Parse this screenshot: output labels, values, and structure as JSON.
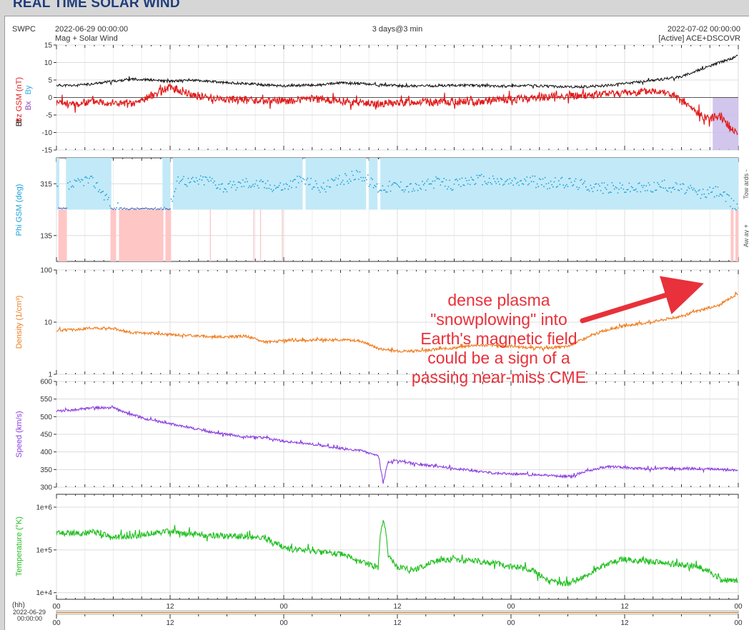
{
  "page": {
    "title": "REAL TIME SOLAR WIND"
  },
  "header": {
    "source": "SWPC",
    "start_time": "2022-06-29 00:00:00",
    "subtitle": "Mag + Solar Wind",
    "span": "3 days@3 min",
    "end_time": "2022-07-02 00:00:00",
    "spacecraft": "[Active] ACE+DSCOVR"
  },
  "annotation": {
    "lines": [
      "dense plasma",
      "\"snowplowing\" into",
      "Earth's magnetic field",
      "could be a sign of a",
      "passing near-miss CME"
    ],
    "color": "#e8313a"
  },
  "x_axis": {
    "tick_labels": [
      "00",
      "12",
      "00",
      "12",
      "00",
      "12",
      "00"
    ],
    "hours": [
      0,
      12,
      24,
      36,
      48,
      60,
      72
    ],
    "unit_label": "(hh)",
    "date_label": "2022-06-29",
    "time_label": "00:00:00"
  },
  "chart_data": [
    {
      "type": "line",
      "name": "mag",
      "ylabel_parts": {
        "bz": "Bz GSM (nT)",
        "bx": "Bx",
        "by": "By",
        "bt": "Bt"
      },
      "ylim": [
        -15,
        15
      ],
      "yticks": [
        15,
        10,
        5,
        0,
        -5,
        -10,
        -15
      ],
      "grid": true,
      "colors": {
        "bt": "#111111",
        "bz": "#e11b1b",
        "by": "#2aa8e0",
        "bx": "#8a3fc0",
        "shade": "#c8b8e8"
      },
      "series": [
        {
          "name": "Bt",
          "x": [
            0,
            2,
            4,
            6,
            8,
            10,
            12,
            14,
            16,
            18,
            20,
            22,
            24,
            26,
            28,
            30,
            32,
            34,
            36,
            38,
            40,
            42,
            44,
            46,
            48,
            50,
            52,
            54,
            56,
            58,
            60,
            62,
            64,
            66,
            67,
            68,
            69,
            70,
            71,
            72
          ],
          "y": [
            3.5,
            3.4,
            4.0,
            4.6,
            5.3,
            5.0,
            4.6,
            5.0,
            4.6,
            4.2,
            4.0,
            3.6,
            3.3,
            3.5,
            3.6,
            4.2,
            4.0,
            3.6,
            3.4,
            3.3,
            3.3,
            3.5,
            3.5,
            3.3,
            3.2,
            3.4,
            3.2,
            3.0,
            3.1,
            3.4,
            4.0,
            4.6,
            5.2,
            6.0,
            7.0,
            8.0,
            9.0,
            10.0,
            10.8,
            12.0
          ]
        },
        {
          "name": "Bz GSM",
          "x": [
            0,
            2,
            4,
            6,
            8,
            10,
            12,
            14,
            16,
            18,
            20,
            22,
            24,
            26,
            28,
            30,
            32,
            34,
            36,
            38,
            40,
            42,
            44,
            46,
            48,
            50,
            52,
            54,
            56,
            58,
            60,
            62,
            64,
            65,
            66,
            67,
            68,
            69,
            70,
            71,
            72
          ],
          "y": [
            -1.5,
            -2.0,
            -1.0,
            -1.5,
            -2.0,
            0.5,
            3.0,
            1.0,
            0.0,
            -0.5,
            -0.8,
            -1.0,
            -1.0,
            -0.6,
            -0.4,
            -1.0,
            -1.4,
            -1.8,
            -1.6,
            -1.2,
            -1.4,
            -1.2,
            -1.3,
            -0.8,
            -0.6,
            -0.2,
            0.3,
            0.4,
            0.6,
            1.0,
            1.3,
            1.6,
            2.0,
            0.5,
            -1.0,
            -3.0,
            -5.0,
            -6.0,
            -5.0,
            -8.0,
            -10.5
          ]
        }
      ],
      "shaded_interval_hours": [
        69.3,
        72
      ]
    },
    {
      "type": "scatter",
      "name": "phi",
      "ylabel": "Phi GSM (deg)",
      "ylim": [
        45,
        405
      ],
      "yticks": [
        315,
        135
      ],
      "grid": true,
      "side_labels": [
        "Tow ards -",
        "Aw ay +"
      ],
      "colors": {
        "points": "#1a9fd8",
        "toward_band": "#c2e9f8",
        "away_band": "#ffc6c6",
        "away_points": "#4a6fb8"
      },
      "toward_band_hours": [
        [
          0,
          0.3
        ],
        [
          1.0,
          5.8
        ],
        [
          11.2,
          12.0
        ],
        [
          12.3,
          26.0
        ],
        [
          26.3,
          32.7
        ],
        [
          33.0,
          33.9
        ],
        [
          34.2,
          72.0
        ]
      ],
      "away_band_hours": [
        [
          0.2,
          1.1
        ],
        [
          5.7,
          6.3
        ],
        [
          6.6,
          11.3
        ],
        [
          11.5,
          12.1
        ],
        [
          16.2,
          16.3
        ],
        [
          20.8,
          20.9
        ],
        [
          21.5,
          21.6
        ],
        [
          23.8,
          23.9
        ],
        [
          71.2,
          71.5
        ],
        [
          71.7,
          72.0
        ]
      ],
      "series": [
        {
          "name": "Phi GSM",
          "x": [
            0,
            2,
            3,
            4,
            6,
            8,
            10,
            12,
            13,
            14,
            16,
            18,
            20,
            22,
            24,
            26,
            28,
            30,
            32,
            34,
            36,
            38,
            40,
            42,
            44,
            46,
            48,
            50,
            52,
            54,
            56,
            58,
            60,
            62,
            64,
            66,
            68,
            70,
            71.5
          ],
          "y": [
            300,
            310,
            330,
            320,
            240,
            235,
            235,
            240,
            340,
            320,
            330,
            300,
            320,
            310,
            305,
            330,
            300,
            325,
            350,
            300,
            310,
            300,
            320,
            310,
            330,
            325,
            320,
            325,
            315,
            320,
            310,
            300,
            300,
            300,
            310,
            300,
            280,
            290,
            240
          ]
        }
      ]
    },
    {
      "type": "line",
      "name": "density",
      "ylabel": "Density (1/cm³)",
      "scale": "log",
      "ylim": [
        1,
        100
      ],
      "yticks": [
        100,
        10,
        1
      ],
      "grid": true,
      "colors": {
        "line": "#ef7c1e"
      },
      "series": [
        {
          "name": "Density",
          "x": [
            0,
            2,
            4,
            6,
            8,
            10,
            12,
            14,
            16,
            18,
            20,
            22,
            24,
            26,
            28,
            30,
            32,
            34,
            36,
            38,
            40,
            42,
            44,
            46,
            48,
            50,
            52,
            54,
            56,
            58,
            60,
            62,
            64,
            66,
            68,
            70,
            71,
            72
          ],
          "y": [
            7,
            7.1,
            7.8,
            7.6,
            6.2,
            6.1,
            5.8,
            5.6,
            5.3,
            5.2,
            5.4,
            4.1,
            4.4,
            4.5,
            4.6,
            4.6,
            4.4,
            3.1,
            2.8,
            2.8,
            3.0,
            3.2,
            3.6,
            3.6,
            3.5,
            3.2,
            3.2,
            3.4,
            5.0,
            7.0,
            8.5,
            9.5,
            11,
            13,
            17,
            21,
            28,
            35
          ]
        }
      ]
    },
    {
      "type": "line",
      "name": "speed",
      "ylabel": "Speed (km/s)",
      "ylim": [
        300,
        600
      ],
      "yticks": [
        600,
        550,
        500,
        450,
        400,
        350,
        300
      ],
      "grid": true,
      "colors": {
        "line": "#8a3ee0"
      },
      "series": [
        {
          "name": "Speed",
          "x": [
            0,
            2,
            4,
            6,
            8,
            10,
            12,
            14,
            16,
            18,
            20,
            22,
            24,
            26,
            28,
            30,
            32,
            34,
            34.5,
            35,
            36,
            38,
            40,
            42,
            44,
            46,
            48,
            50,
            52,
            54,
            56,
            58,
            60,
            62,
            64,
            66,
            68,
            70,
            72
          ],
          "y": [
            515,
            520,
            525,
            525,
            505,
            490,
            480,
            470,
            458,
            450,
            443,
            440,
            430,
            425,
            418,
            410,
            405,
            390,
            312,
            370,
            375,
            365,
            360,
            353,
            347,
            340,
            338,
            335,
            333,
            330,
            345,
            358,
            356,
            352,
            353,
            352,
            352,
            350,
            348
          ]
        }
      ]
    },
    {
      "type": "line",
      "name": "temperature",
      "ylabel": "Temperature (°K)",
      "scale": "log",
      "ylim": [
        7000,
        2000000
      ],
      "yticks": [
        1000000,
        100000,
        10000
      ],
      "ytick_labels": [
        "1e+6",
        "1e+5",
        "1e+4"
      ],
      "grid": true,
      "colors": {
        "line": "#1fbf1f"
      },
      "series": [
        {
          "name": "Temperature",
          "x": [
            0,
            2,
            4,
            6,
            8,
            10,
            12,
            14,
            16,
            18,
            20,
            22,
            24,
            26,
            28,
            30,
            32,
            34,
            34.5,
            35,
            36,
            38,
            40,
            42,
            44,
            46,
            48,
            50,
            52,
            54,
            56,
            58,
            60,
            62,
            64,
            66,
            68,
            70,
            72
          ],
          "y": [
            250000,
            245000,
            260000,
            200000,
            210000,
            240000,
            280000,
            230000,
            220000,
            210000,
            205000,
            190000,
            110000,
            95000,
            90000,
            80000,
            55000,
            38000,
            450000,
            70000,
            40000,
            35000,
            55000,
            60000,
            55000,
            50000,
            40000,
            35000,
            18000,
            16000,
            25000,
            45000,
            60000,
            55000,
            50000,
            45000,
            40000,
            20000,
            19000
          ]
        }
      ]
    }
  ]
}
